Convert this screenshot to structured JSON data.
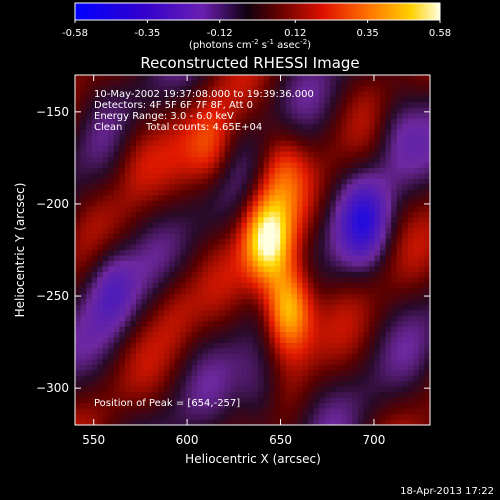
{
  "chart_data": {
    "type": "heatmap",
    "title": "Reconstructed RHESSI Image",
    "xlabel": "Heliocentric X (arcsec)",
    "ylabel": "Heliocentric Y (arcsec)",
    "xlim": [
      540,
      730
    ],
    "ylim": [
      -320,
      -130
    ],
    "x_ticks": [
      "550",
      "600",
      "650",
      "700"
    ],
    "y_ticks": [
      "-150",
      "-200",
      "-250",
      "-300"
    ],
    "colorbar": {
      "range": [
        -0.58,
        0.58
      ],
      "tick_labels": [
        "-0.58",
        "-0.35",
        "-0.12",
        "0.12",
        "0.35",
        "0.58"
      ],
      "units_prefix": "(photons cm",
      "units_exp1": "-2",
      "units_mid": " s",
      "units_exp2": "-1",
      "units_mid2": " asec",
      "units_exp3": "-2",
      "units_suffix": ")"
    },
    "annotations": [
      "10-May-2002 19:37:08.000 to 19:39:36.000",
      "Detectors: 4F 5F 6F 7F 8F, Att 0",
      "Energy Range: 3.0 - 6.0 keV",
      "Clean",
      "Total counts: 4.65E+04"
    ],
    "peak_label": "Position of Peak = [654,-257]",
    "peaks": [
      {
        "x": 654,
        "y": -257,
        "value": 0.58
      },
      {
        "x": 643,
        "y": -220,
        "value": 0.52
      }
    ],
    "features": [
      {
        "x": 613,
        "y": -170,
        "value": 0.25
      },
      {
        "x": 572,
        "y": -175,
        "value": 0.12
      },
      {
        "x": 651,
        "y": -180,
        "value": 0.2
      },
      {
        "x": 593,
        "y": -255,
        "value": 0.1
      },
      {
        "x": 695,
        "y": -210,
        "value": -0.3
      },
      {
        "x": 560,
        "y": -245,
        "value": -0.25
      },
      {
        "x": 712,
        "y": -160,
        "value": -0.15
      },
      {
        "x": 640,
        "y": -305,
        "value": -0.2
      }
    ]
  },
  "footer": {
    "timestamp": "18-Apr-2013 17:22"
  }
}
